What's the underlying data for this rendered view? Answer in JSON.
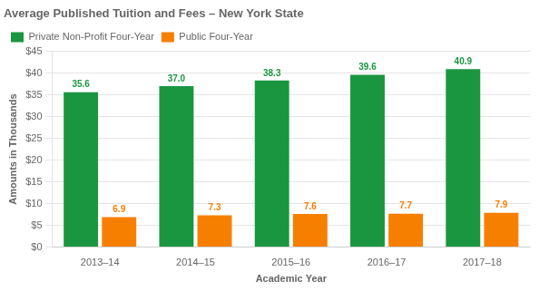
{
  "chart_data": {
    "type": "bar",
    "title": "Average Published Tuition and Fees – New York State",
    "categories": [
      "2013–14",
      "2014–15",
      "2015–16",
      "2016–17",
      "2017–18"
    ],
    "series": [
      {
        "name": "Private Non-Profit Four-Year",
        "color": "#1a9641",
        "values": [
          35.6,
          37.0,
          38.3,
          39.6,
          40.9
        ],
        "value_labels": [
          "35.6",
          "37.0",
          "38.3",
          "39.6",
          "40.9"
        ]
      },
      {
        "name": "Public Four-Year",
        "color": "#f77f00",
        "values": [
          6.9,
          7.3,
          7.6,
          7.7,
          7.9
        ]
      }
    ],
    "xlabel": "Academic Year",
    "ylabel": "Amounts in Thousands",
    "ylim": [
      0,
      45
    ],
    "yticks": [
      {
        "value": 0,
        "label": "$0"
      },
      {
        "value": 5,
        "label": "$5"
      },
      {
        "value": 10,
        "label": "$10"
      },
      {
        "value": 15,
        "label": "$15"
      },
      {
        "value": 20,
        "label": "$20"
      },
      {
        "value": 25,
        "label": "$25"
      },
      {
        "value": 30,
        "label": "$30"
      },
      {
        "value": 35,
        "label": "$35"
      },
      {
        "value": 40,
        "label": "$40"
      },
      {
        "value": 45,
        "label": "$45"
      }
    ],
    "grid": true,
    "legend": "upper left",
    "data_labels": true
  }
}
